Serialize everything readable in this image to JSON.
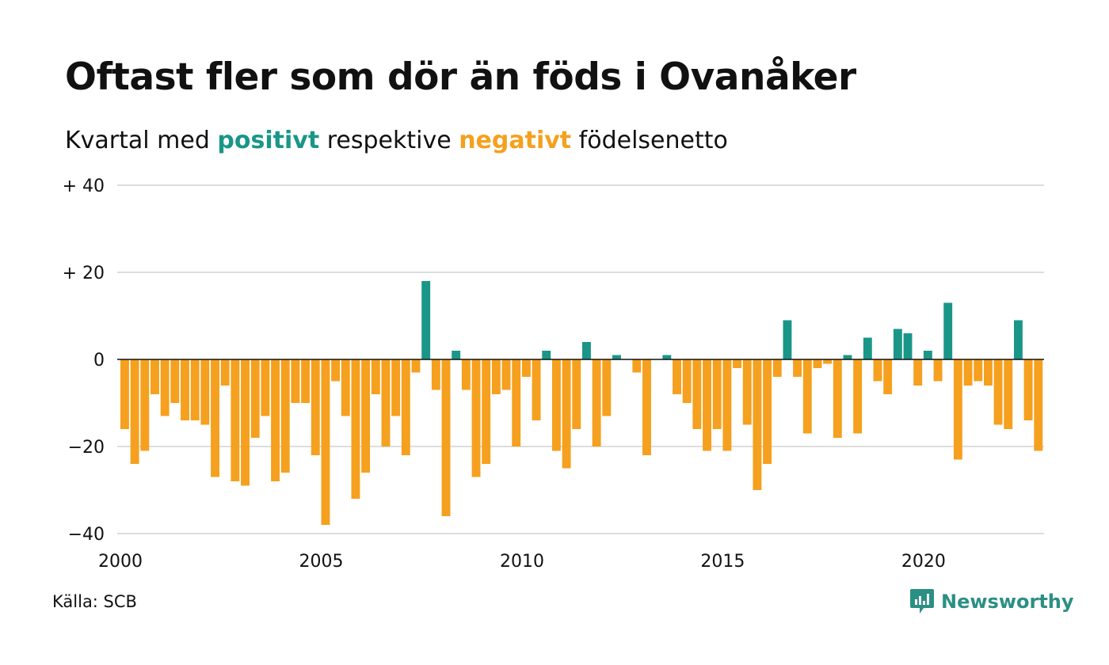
{
  "title": "Oftast fler som dör än föds i Ovanåker",
  "subtitle": {
    "prefix": "Kvartal med ",
    "positive_word": "positivt",
    "middle": " respektive ",
    "negative_word": "negativt",
    "suffix": " födelsenetto"
  },
  "source": "Källa: SCB",
  "brand": "Newsworthy",
  "colors": {
    "positive": "#1a9688",
    "negative": "#f5a01e",
    "grid": "#dddddd",
    "brand": "#2b8f84"
  },
  "chart_data": {
    "type": "bar",
    "x_start": "2000 Q1",
    "values": [
      -16,
      -24,
      -21,
      -8,
      -13,
      -10,
      -14,
      -14,
      -15,
      -27,
      -6,
      -28,
      -29,
      -18,
      -13,
      -28,
      -26,
      -10,
      -10,
      -22,
      -38,
      -5,
      -13,
      -32,
      -26,
      -8,
      -20,
      -13,
      -22,
      -3,
      18,
      -7,
      -36,
      2,
      -7,
      -27,
      -24,
      -8,
      -7,
      -20,
      -4,
      -14,
      2,
      -21,
      -25,
      -16,
      4,
      -20,
      -13,
      1,
      0,
      -3,
      -22,
      0,
      1,
      -8,
      -10,
      -16,
      -21,
      -16,
      -21,
      -2,
      -15,
      -30,
      -24,
      -4,
      9,
      -4,
      -17,
      -2,
      -1,
      -18,
      1,
      -17,
      5,
      -5,
      -8,
      7,
      6,
      -6,
      2,
      -5,
      13,
      -23,
      -6,
      -5,
      -6,
      -15,
      -16,
      9,
      -14,
      -21
    ],
    "ylim": [
      -40,
      40
    ],
    "y_ticks": [
      40,
      20,
      0,
      -20,
      -40
    ],
    "y_tick_labels": [
      "+ 40",
      "+ 20",
      "0",
      "−20",
      "−40"
    ],
    "x_ticks": [
      "2000",
      "2005",
      "2010",
      "2015",
      "2020"
    ],
    "grid": true
  }
}
